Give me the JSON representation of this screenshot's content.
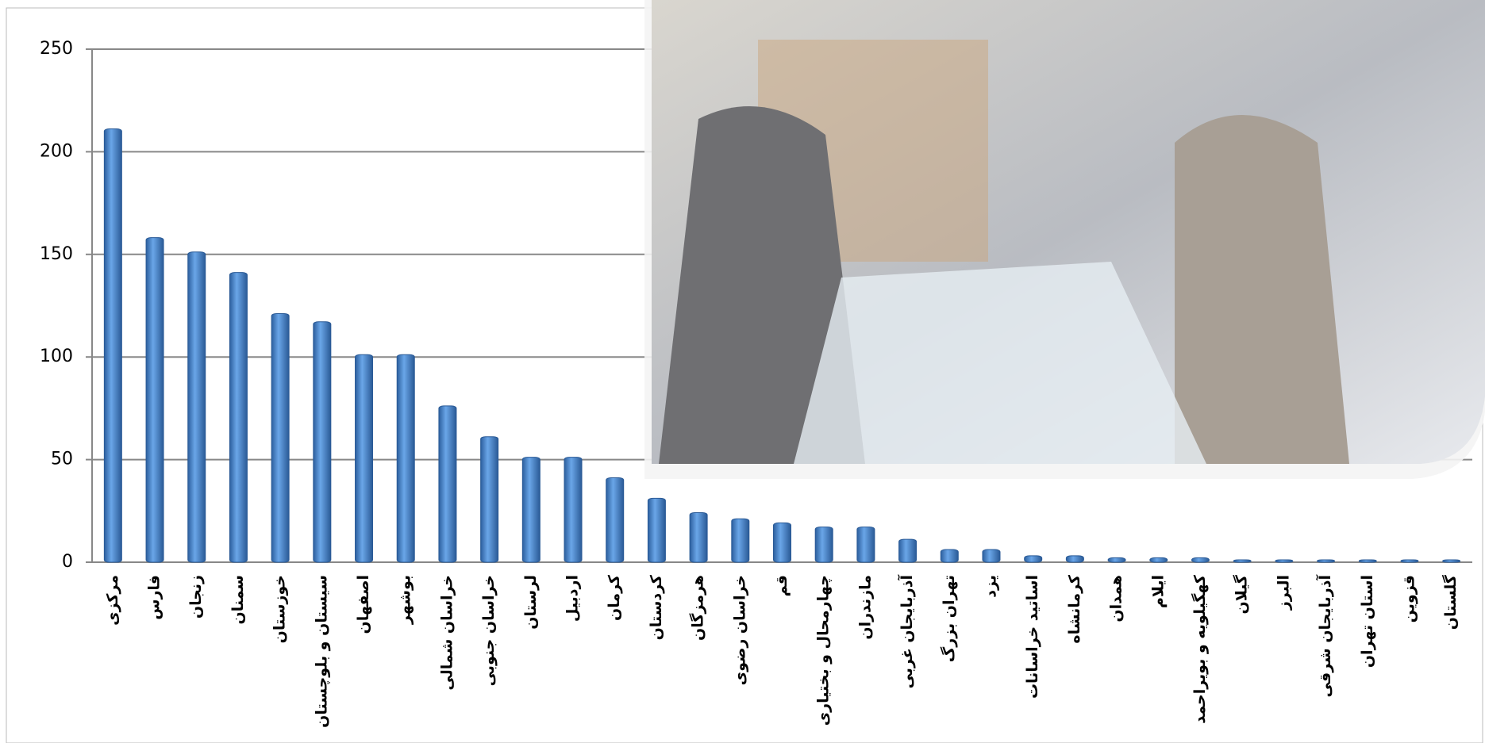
{
  "chart_data": {
    "type": "bar",
    "categories": [
      "مرکزی",
      "فارس",
      "زنجان",
      "سمنان",
      "خوزستان",
      "سیستان و بلوچستان",
      "اصفهان",
      "بوشهر",
      "خراسان شمالی",
      "خراسان جنوبی",
      "لرستان",
      "اردبیل",
      "کرمان",
      "کردستان",
      "هرمزگان",
      "خراسان رضوی",
      "قم",
      "چهارمحال و بختیاری",
      "مازندران",
      "آذربایجان غربی",
      "تهران بزرگ",
      "یزد",
      "اساتید خراسانات",
      "کرمانشاه",
      "همدان",
      "ایلام",
      "کهگیلویه و بویراحمد",
      "گیلان",
      "البرز",
      "آذربایجان شرقی",
      "استان تهران",
      "قزوین",
      "گلستان"
    ],
    "values": [
      210,
      157,
      150,
      140,
      120,
      116,
      100,
      100,
      75,
      60,
      50,
      50,
      40,
      30,
      23,
      20,
      18,
      16,
      16,
      10,
      5,
      5,
      2,
      2,
      1,
      1,
      1,
      0,
      0,
      0,
      0,
      0,
      0
    ],
    "color": "#4a86cf",
    "ylim": [
      0,
      250
    ],
    "yticks": [
      0,
      50,
      100,
      150,
      200,
      250
    ],
    "grid": true
  }
}
